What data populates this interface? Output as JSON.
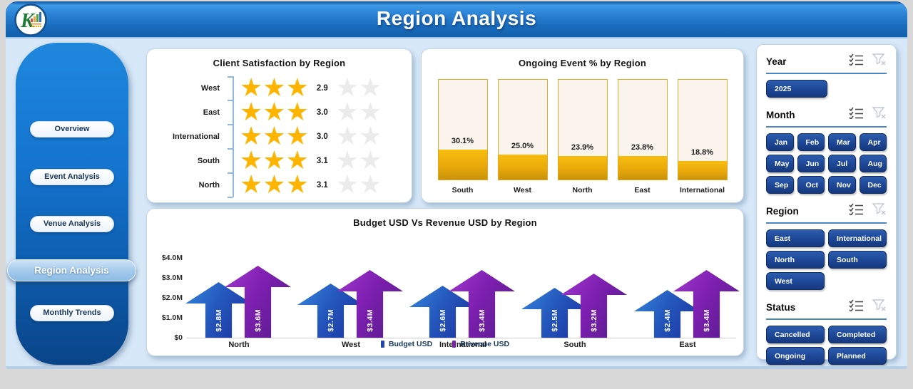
{
  "header": {
    "title": "Region Analysis"
  },
  "sidebar": {
    "items": [
      {
        "label": "Overview",
        "active": false
      },
      {
        "label": "Event Analysis",
        "active": false
      },
      {
        "label": "Venue Analysis",
        "active": false
      },
      {
        "label": "Region Analysis",
        "active": true
      },
      {
        "label": "Monthly Trends",
        "active": false
      }
    ]
  },
  "chart_data": [
    {
      "id": "satisfaction",
      "type": "stars",
      "title": "Client Satisfaction by Region",
      "categories": [
        "West",
        "East",
        "International",
        "South",
        "North"
      ],
      "values": [
        2.9,
        3.0,
        3.0,
        3.1,
        3.1
      ],
      "value_labels": [
        "2.9",
        "3.0",
        "3.0",
        "3.1",
        "3.1"
      ],
      "max_stars": 5,
      "filled_stars": 3,
      "star_color": "#FFB400",
      "empty_star_color": "#EBEBEB"
    },
    {
      "id": "ongoing",
      "type": "bar",
      "title": "Ongoing Event % by Region",
      "categories": [
        "South",
        "West",
        "North",
        "East",
        "International"
      ],
      "values": [
        30.1,
        25.0,
        23.9,
        23.8,
        18.8
      ],
      "value_labels": [
        "30.1%",
        "25.0%",
        "23.9%",
        "23.8%",
        "18.8%"
      ],
      "ylim": [
        0,
        100
      ],
      "bar_color": "#EFAF08"
    },
    {
      "id": "budget_revenue",
      "type": "bar",
      "title": "Budget USD Vs Revenue USD by Region",
      "categories": [
        "North",
        "West",
        "International",
        "South",
        "East"
      ],
      "series": [
        {
          "name": "Budget USD",
          "values": [
            2.8,
            2.7,
            2.6,
            2.5,
            2.4
          ],
          "value_labels": [
            "$2.8M",
            "$2.7M",
            "$2.6M",
            "$2.5M",
            "$2.4M"
          ],
          "color": "#2446AC"
        },
        {
          "name": "Revenue USD",
          "values": [
            3.6,
            3.4,
            3.4,
            3.2,
            3.4
          ],
          "value_labels": [
            "$3.6M",
            "$3.4M",
            "$3.4M",
            "$3.2M",
            "$3.4M"
          ],
          "color": "#7A22A8"
        }
      ],
      "y_ticks": [
        "$0",
        "$1.0M",
        "$2.0M",
        "$3.0M",
        "$4.0M"
      ],
      "ylim": [
        0,
        4
      ]
    }
  ],
  "filters": {
    "sections": [
      {
        "id": "year",
        "label": "Year",
        "columns": 1,
        "options": [
          "2025"
        ]
      },
      {
        "id": "month",
        "label": "Month",
        "columns": 4,
        "options": [
          "Jan",
          "Feb",
          "Mar",
          "Apr",
          "May",
          "Jun",
          "Jul",
          "Aug",
          "Sep",
          "Oct",
          "Nov",
          "Dec"
        ]
      },
      {
        "id": "region",
        "label": "Region",
        "columns": 2,
        "options": [
          "East",
          "International",
          "North",
          "South",
          "West"
        ]
      },
      {
        "id": "status",
        "label": "Status",
        "columns": 2,
        "options": [
          "Cancelled",
          "Completed",
          "Ongoing",
          "Planned"
        ]
      }
    ]
  },
  "colors": {
    "header_blue": "#1A6CBE",
    "filter_button_blue": "#1D4796",
    "gold": "#EFAF08",
    "budget_blue": "#2458BD",
    "revenue_purple": "#7D1FB0",
    "dashboard_bg": "#D7E8F8"
  }
}
